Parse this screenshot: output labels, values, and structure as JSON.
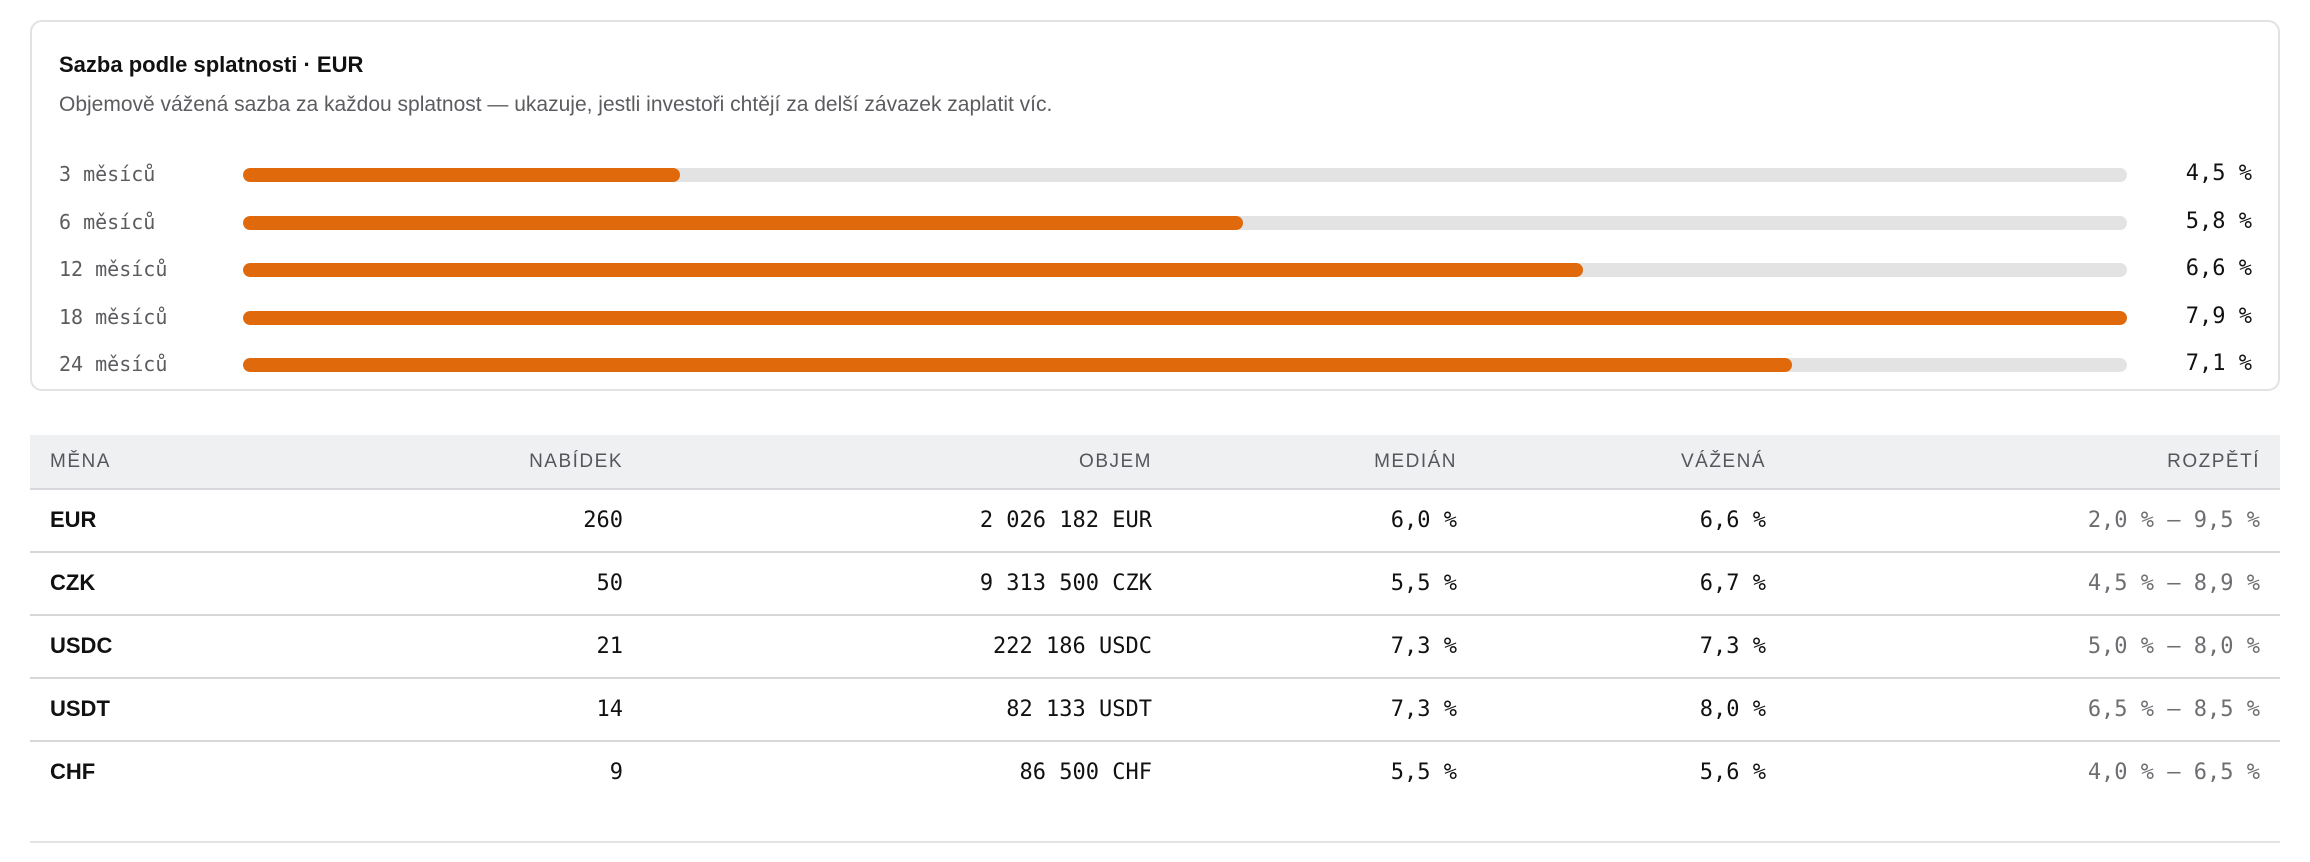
{
  "maturity_card": {
    "title": "Sazba podle splatnosti · EUR",
    "subtitle": "Objemově vážená sazba za každou splatnost — ukazuje, jestli investoři chtějí za delší závazek zaplatit víc.",
    "bar_color": "#e0690c",
    "rows": [
      {
        "label": "3 měsíců",
        "value_label": "4,5 %",
        "rate": 4.5,
        "fill_fraction": 0.232
      },
      {
        "label": "6 měsíců",
        "value_label": "5,8 %",
        "rate": 5.8,
        "fill_fraction": 0.531
      },
      {
        "label": "12 měsíců",
        "value_label": "6,6 %",
        "rate": 6.6,
        "fill_fraction": 0.711
      },
      {
        "label": "18 měsíců",
        "value_label": "7,9 %",
        "rate": 7.9,
        "fill_fraction": 1.0
      },
      {
        "label": "24 měsíců",
        "value_label": "7,1 %",
        "rate": 7.1,
        "fill_fraction": 0.822
      }
    ]
  },
  "currency_table": {
    "headers": {
      "currency": "MĚNA",
      "offers": "NABÍDEK",
      "volume": "OBJEM",
      "median": "MEDIÁN",
      "weighted": "VÁŽENÁ",
      "range": "ROZPĚTÍ"
    },
    "rows": [
      {
        "currency": "EUR",
        "offers": "260",
        "volume": "2 026 182 EUR",
        "median": "6,0 %",
        "weighted": "6,6 %",
        "range": "2,0 % – 9,5 %"
      },
      {
        "currency": "CZK",
        "offers": "50",
        "volume": "9 313 500 CZK",
        "median": "5,5 %",
        "weighted": "6,7 %",
        "range": "4,5 % – 8,9 %"
      },
      {
        "currency": "USDC",
        "offers": "21",
        "volume": "222 186 USDC",
        "median": "7,3 %",
        "weighted": "7,3 %",
        "range": "5,0 % – 8,0 %"
      },
      {
        "currency": "USDT",
        "offers": "14",
        "volume": "82 133 USDT",
        "median": "7,3 %",
        "weighted": "8,0 %",
        "range": "6,5 % – 8,5 %"
      },
      {
        "currency": "CHF",
        "offers": "9",
        "volume": "86 500 CHF",
        "median": "5,5 %",
        "weighted": "5,6 %",
        "range": "4,0 % – 6,5 %"
      }
    ]
  }
}
